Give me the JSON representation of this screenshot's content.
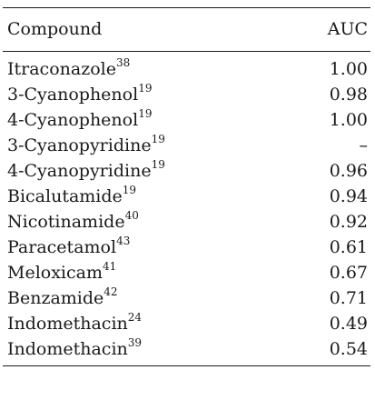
{
  "table": {
    "headers": {
      "compound": "Compound",
      "auc": "AUC"
    },
    "rows": [
      {
        "name": "Itraconazole",
        "ref": "38",
        "auc": "1.00"
      },
      {
        "name": "3-Cyanophenol",
        "ref": "19",
        "auc": "0.98"
      },
      {
        "name": "4-Cyanophenol",
        "ref": "19",
        "auc": "1.00"
      },
      {
        "name": "3-Cyanopyridine",
        "ref": "19",
        "auc": "–"
      },
      {
        "name": "4-Cyanopyridine",
        "ref": "19",
        "auc": "0.96"
      },
      {
        "name": "Bicalutamide",
        "ref": "19",
        "auc": "0.94"
      },
      {
        "name": "Nicotinamide",
        "ref": "40",
        "auc": "0.92"
      },
      {
        "name": "Paracetamol",
        "ref": "43",
        "auc": "0.61"
      },
      {
        "name": "Meloxicam",
        "ref": "41",
        "auc": "0.67"
      },
      {
        "name": "Benzamide",
        "ref": "42",
        "auc": "0.71"
      },
      {
        "name": "Indomethacin",
        "ref": "24",
        "auc": "0.49"
      },
      {
        "name": "Indomethacin",
        "ref": "39",
        "auc": "0.54"
      }
    ]
  }
}
